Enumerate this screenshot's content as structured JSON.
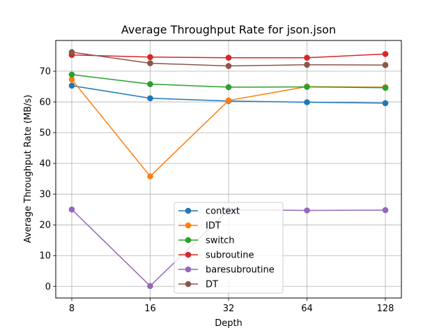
{
  "chart_data": {
    "type": "line",
    "title": "Average Throughput Rate for json.json",
    "xlabel": "Depth",
    "ylabel": "Average Throughput Rate (MB/s)",
    "x": [
      8,
      16,
      32,
      64,
      128
    ],
    "x_tick_labels": [
      "8",
      "16",
      "32",
      "64",
      "128"
    ],
    "x_scale": "log2",
    "ylim": [
      -3.8,
      80
    ],
    "y_ticks": [
      0,
      10,
      20,
      30,
      40,
      50,
      60,
      70
    ],
    "grid": true,
    "legend_placement": "lower-center",
    "series": [
      {
        "name": "context",
        "color": "#1f77b4",
        "values": [
          65.3,
          61.2,
          60.3,
          59.9,
          59.6
        ]
      },
      {
        "name": "IDT",
        "color": "#ff7f0e",
        "values": [
          67.3,
          35.8,
          60.5,
          65.0,
          64.8
        ]
      },
      {
        "name": "switch",
        "color": "#2ca02c",
        "values": [
          68.9,
          65.8,
          64.8,
          64.9,
          64.6
        ]
      },
      {
        "name": "subroutine",
        "color": "#d62728",
        "values": [
          75.3,
          74.6,
          74.4,
          74.4,
          75.6
        ]
      },
      {
        "name": "baresubroutine",
        "color": "#9467bd",
        "values": [
          25.0,
          0.1,
          24.9,
          24.7,
          24.8
        ]
      },
      {
        "name": "DT",
        "color": "#8c564b",
        "values": [
          76.2,
          72.6,
          71.7,
          72.1,
          72.0
        ]
      }
    ]
  }
}
